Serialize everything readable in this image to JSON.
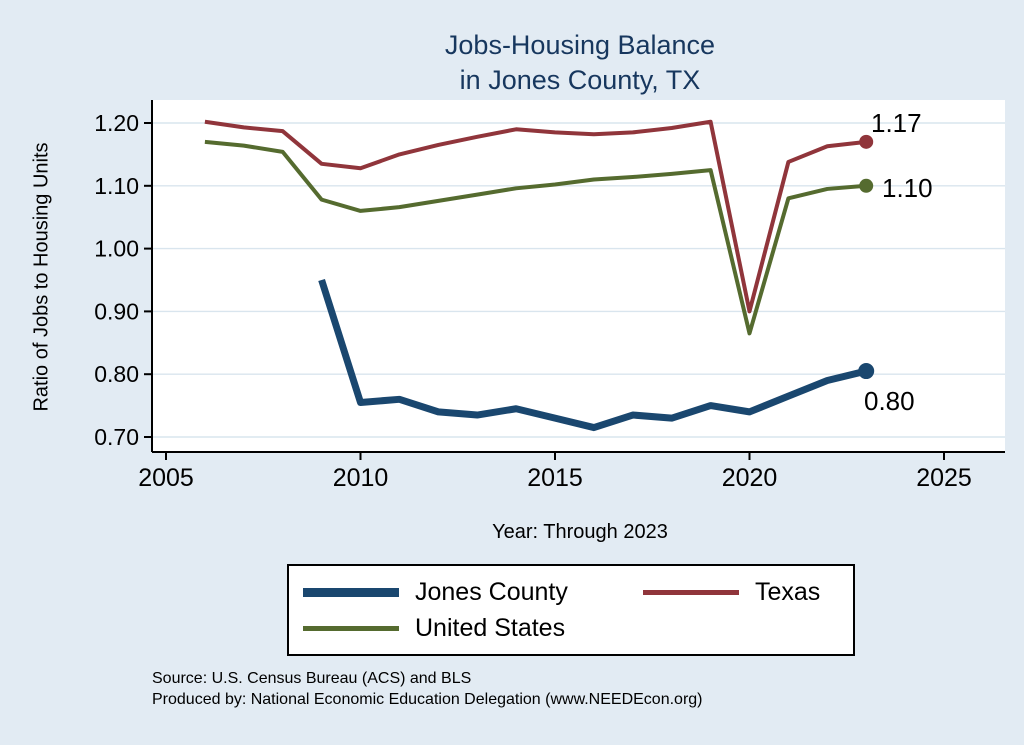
{
  "page": {
    "background": "#e2ebf3"
  },
  "chart": {
    "title_line1": "Jobs-Housing Balance",
    "title_line2": "in Jones County, TX",
    "title_color": "#17375e",
    "ylabel": "Ratio of Jobs to Housing Units",
    "xlabel": "Year: Through 2023",
    "source_line1": "Source: U.S. Census Bureau (ACS) and BLS",
    "source_line2": "Produced by: National Economic Education Delegation (www.NEEDEcon.org)"
  },
  "chart_data": {
    "type": "line",
    "xlim": [
      2005,
      2025
    ],
    "ylim": [
      0.7,
      1.2
    ],
    "x_ticks": [
      2005,
      2010,
      2015,
      2020,
      2025
    ],
    "y_ticks": [
      0.7,
      0.8,
      0.9,
      1.0,
      1.1,
      1.2
    ],
    "grid": true,
    "grid_color": "#d9e5ee",
    "legend_position": "bottom",
    "series": [
      {
        "name": "Jones County",
        "color": "#1a476f",
        "width": 7,
        "end_label": "0.80",
        "x": [
          2009,
          2010,
          2011,
          2012,
          2013,
          2014,
          2015,
          2016,
          2017,
          2018,
          2019,
          2020,
          2021,
          2022,
          2023
        ],
        "values": [
          0.95,
          0.755,
          0.76,
          0.74,
          0.735,
          0.745,
          0.73,
          0.715,
          0.735,
          0.73,
          0.75,
          0.74,
          0.765,
          0.79,
          0.805
        ]
      },
      {
        "name": "Texas",
        "color": "#90353b",
        "width": 4,
        "end_label": "1.17",
        "x": [
          2006,
          2007,
          2008,
          2009,
          2010,
          2011,
          2012,
          2013,
          2014,
          2015,
          2016,
          2017,
          2018,
          2019,
          2020,
          2021,
          2022,
          2023
        ],
        "values": [
          1.202,
          1.193,
          1.187,
          1.135,
          1.128,
          1.15,
          1.165,
          1.178,
          1.19,
          1.185,
          1.182,
          1.185,
          1.192,
          1.202,
          0.9,
          1.138,
          1.163,
          1.17
        ]
      },
      {
        "name": "United States",
        "color": "#556b2f",
        "width": 4,
        "end_label": "1.10",
        "x": [
          2006,
          2007,
          2008,
          2009,
          2010,
          2011,
          2012,
          2013,
          2014,
          2015,
          2016,
          2017,
          2018,
          2019,
          2020,
          2021,
          2022,
          2023
        ],
        "values": [
          1.17,
          1.164,
          1.154,
          1.078,
          1.06,
          1.066,
          1.076,
          1.086,
          1.096,
          1.102,
          1.11,
          1.114,
          1.119,
          1.125,
          0.865,
          1.08,
          1.095,
          1.1
        ]
      }
    ]
  }
}
